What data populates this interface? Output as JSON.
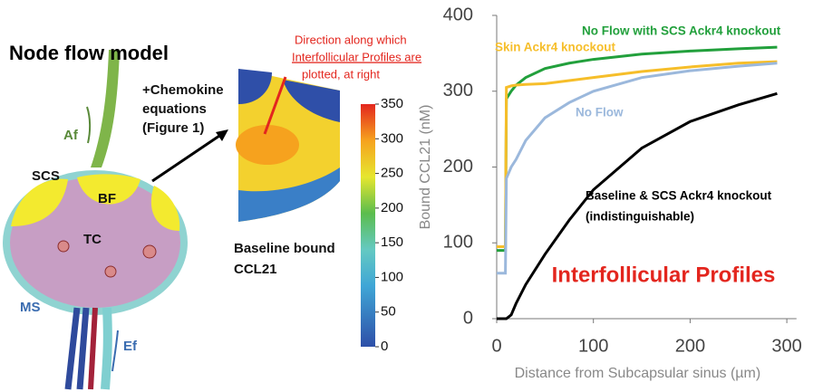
{
  "chart_data": {
    "type": "line",
    "title": "Interfollicular Profiles",
    "x_label": "Distance from Subcapsular sinus (µm)",
    "y_label": "Bound CCL21 (nM)",
    "x": [
      0,
      9,
      10,
      15,
      20,
      30,
      50,
      75,
      100,
      150,
      200,
      250,
      290
    ],
    "series": [
      {
        "name": "No Flow with SCS Ackr4 knockout",
        "color": "#22a03c",
        "values": [
          90,
          90,
          290,
          300,
          308,
          318,
          330,
          337,
          342,
          349,
          353,
          356,
          358
        ]
      },
      {
        "name": "Skin Ackr4 knockout",
        "color": "#f6be2a",
        "values": [
          95,
          95,
          305,
          307,
          308,
          309,
          310,
          314,
          318,
          326,
          332,
          337,
          339
        ]
      },
      {
        "name": "No Flow",
        "color": "#9bb8dc",
        "values": [
          60,
          60,
          185,
          200,
          210,
          235,
          265,
          285,
          300,
          318,
          327,
          333,
          337
        ]
      },
      {
        "name": "Baseline & SCS Ackr4 knockout",
        "color": "#000000",
        "values": [
          0,
          0,
          0,
          5,
          20,
          45,
          85,
          130,
          170,
          225,
          260,
          282,
          297
        ]
      }
    ],
    "annotations": [
      "(indistinguishable)"
    ],
    "xlim": [
      0,
      310
    ],
    "xticks": [
      0,
      100,
      200,
      300
    ],
    "ylim": [
      0,
      400
    ],
    "yticks": [
      0,
      100,
      200,
      300,
      400
    ],
    "grid": false
  },
  "colorbar": {
    "ticks": [
      0,
      50,
      100,
      150,
      200,
      250,
      300,
      350
    ],
    "lim": [
      0,
      350
    ]
  },
  "diagram": {
    "title": "Node flow model",
    "labels": [
      "Af",
      "SCS",
      "BF",
      "TC",
      "MS",
      "Ef"
    ],
    "equations": [
      "+Chemokine",
      "equations",
      "(Figure 1)"
    ],
    "caption": [
      "Baseline bound",
      "CCL21"
    ],
    "direction": [
      "Direction along which",
      "Interfollicular Profiles are",
      "plotted, at right"
    ]
  }
}
